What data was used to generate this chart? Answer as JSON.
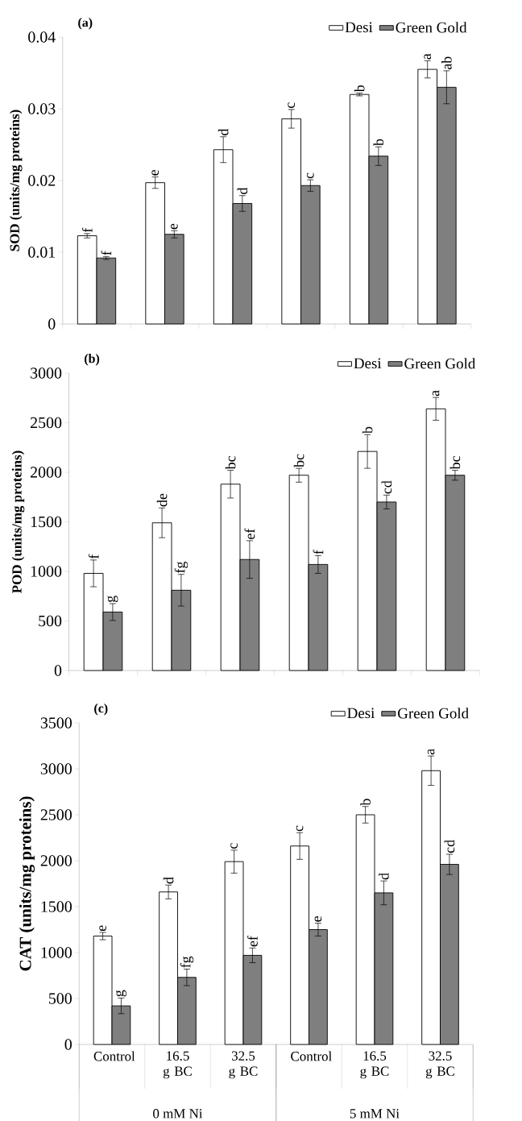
{
  "chart_data": [
    {
      "type": "bar",
      "title": "(a)",
      "ylabel": "SOD (units/mg proteins)",
      "categories": [
        null,
        null,
        null,
        null,
        null,
        null
      ],
      "ylim": [
        0,
        0.04
      ],
      "yticks": [
        0,
        0.01,
        0.02,
        0.03,
        0.04
      ],
      "legend": "top right",
      "series": [
        {
          "name": "Desi",
          "color": "#ffffff",
          "values": [
            0.0123,
            0.0197,
            0.0243,
            0.0286,
            0.032,
            0.0355
          ],
          "errors": [
            0.0003,
            0.0008,
            0.0018,
            0.0013,
            0.0002,
            0.0012
          ],
          "value_labels": [
            "f",
            "e",
            "d",
            "c",
            "b",
            "a"
          ]
        },
        {
          "name": "Green Gold",
          "color": "#7f7f7f",
          "values": [
            0.0092,
            0.0125,
            0.0168,
            0.0193,
            0.0234,
            0.033
          ],
          "errors": [
            0.0002,
            0.0005,
            0.0011,
            0.0008,
            0.0013,
            0.0023
          ],
          "value_labels": [
            "f",
            "e",
            "d",
            "c",
            "b",
            "ab"
          ]
        }
      ]
    },
    {
      "type": "bar",
      "title": "(b)",
      "ylabel": "POD (units/mg proteins)",
      "categories": [
        null,
        null,
        null,
        null,
        null,
        null
      ],
      "ylim": [
        0,
        3000
      ],
      "yticks": [
        0,
        500,
        1000,
        1500,
        2000,
        2500,
        3000
      ],
      "legend": "top right",
      "series": [
        {
          "name": "Desi",
          "color": "#ffffff",
          "values": [
            980,
            1490,
            1880,
            1970,
            2210,
            2640
          ],
          "errors": [
            135,
            150,
            140,
            70,
            170,
            115
          ],
          "value_labels": [
            "f",
            "de",
            "bc",
            "bc",
            "b",
            "a"
          ]
        },
        {
          "name": "Green Gold",
          "color": "#7f7f7f",
          "values": [
            590,
            810,
            1120,
            1070,
            1700,
            1970
          ],
          "errors": [
            85,
            160,
            190,
            90,
            70,
            50
          ],
          "value_labels": [
            "g",
            "fg",
            "ef",
            "f",
            "cd",
            "bc"
          ]
        }
      ]
    },
    {
      "type": "bar",
      "title": "(c)",
      "ylabel": "CAT (units/mg proteins)",
      "categories": [
        "Control",
        "16.5 g BC",
        "32.5 g BC",
        "Control",
        "16.5 g BC",
        "32.5 g BC"
      ],
      "ylim": [
        0,
        3500
      ],
      "yticks": [
        0,
        500,
        1000,
        1500,
        2000,
        2500,
        3000,
        3500
      ],
      "legend": "top right",
      "annotations": [
        "0 mM Ni",
        "5 mM Ni"
      ],
      "series": [
        {
          "name": "Desi",
          "color": "#ffffff",
          "values": [
            1180,
            1660,
            1990,
            2160,
            2500,
            2980
          ],
          "errors": [
            40,
            75,
            125,
            145,
            90,
            160
          ],
          "value_labels": [
            "e",
            "d",
            "c",
            "c",
            "b",
            "a"
          ]
        },
        {
          "name": "Green Gold",
          "color": "#7f7f7f",
          "values": [
            420,
            730,
            970,
            1250,
            1650,
            1960
          ],
          "errors": [
            85,
            90,
            80,
            70,
            130,
            110
          ],
          "value_labels": [
            "g",
            "fg",
            "ef",
            "e",
            "d",
            "cd"
          ]
        }
      ]
    }
  ]
}
